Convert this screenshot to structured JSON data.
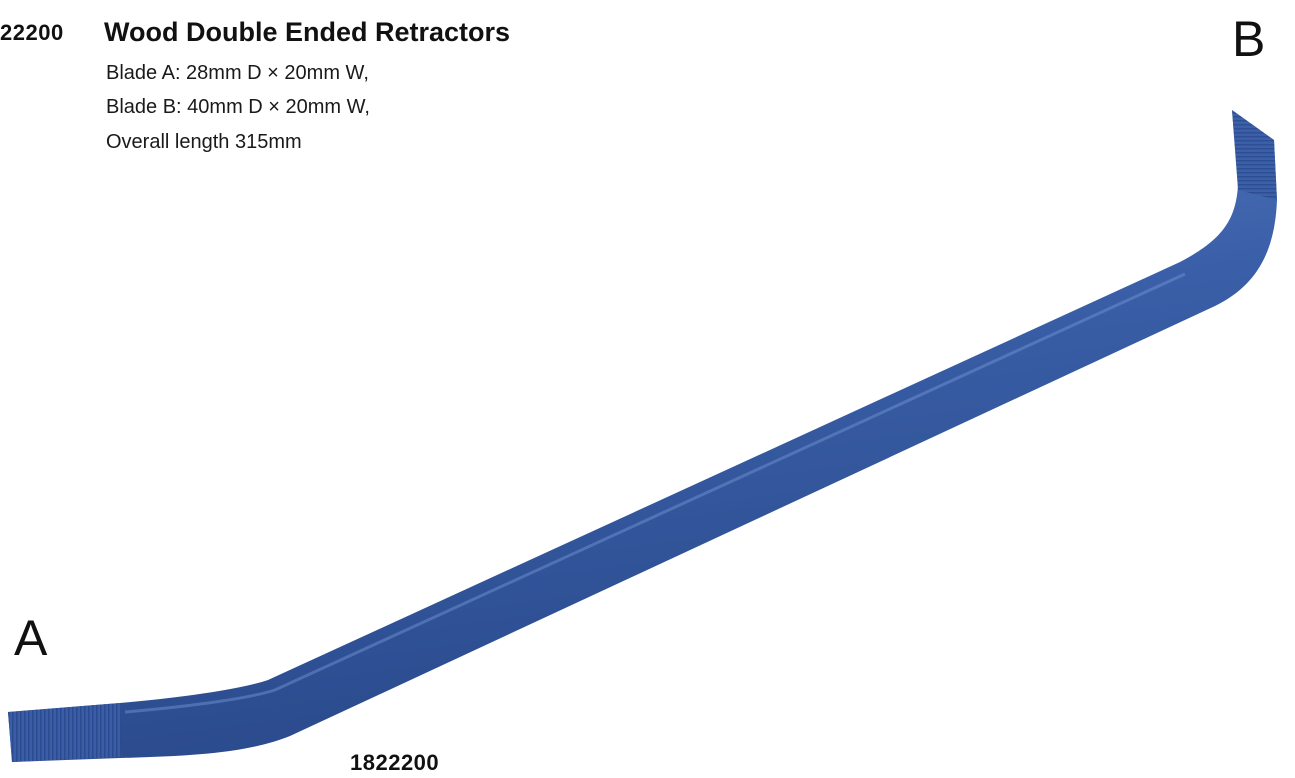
{
  "product": {
    "code_partial": "22200",
    "title": "Wood Double Ended Retractors",
    "specs": [
      "Blade A: 28mm D × 20mm W,",
      "Blade B: 40mm D × 20mm W,",
      "Overall length 315mm"
    ],
    "end_a_label": "A",
    "end_b_label": "B",
    "code_full": "1822200"
  },
  "colors": {
    "instrument": "#3a5fa8",
    "instrument_dark": "#2a4a8c",
    "instrument_light": "#5a80c4"
  }
}
